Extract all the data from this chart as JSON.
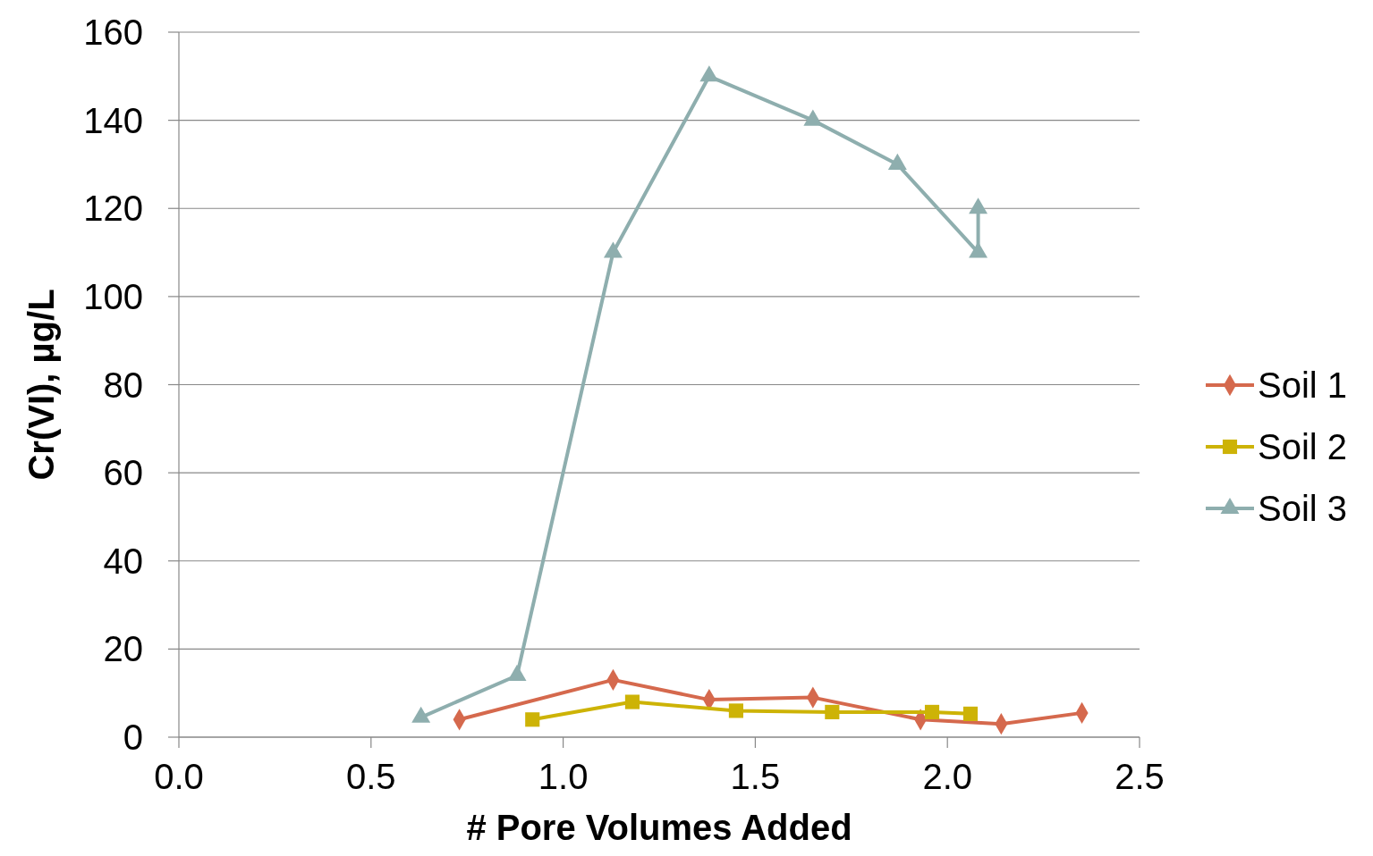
{
  "chart_data": {
    "type": "line",
    "xlabel": "# Pore Volumes Added",
    "ylabel": "Cr(VI), µg/L",
    "xlim": [
      0,
      2.5
    ],
    "xticks": [
      {
        "value": 0,
        "label": "0.0"
      },
      {
        "value": 0.5,
        "label": "0.5"
      },
      {
        "value": 1,
        "label": "1.0"
      },
      {
        "value": 1.5,
        "label": "1.5"
      },
      {
        "value": 2,
        "label": "2.0"
      },
      {
        "value": 2.5,
        "label": "2.5"
      }
    ],
    "ylim": [
      0,
      160
    ],
    "yticks": [
      0,
      20,
      40,
      60,
      80,
      100,
      120,
      140,
      160
    ],
    "grid": "y",
    "legend": "right",
    "series": [
      {
        "name": "Soil 1",
        "color": "#d5694d",
        "marker": "diamond",
        "x": [
          0.73,
          1.13,
          1.38,
          1.65,
          1.93,
          2.14,
          2.35
        ],
        "values": [
          4,
          13,
          8.5,
          9,
          4,
          3,
          5.5
        ]
      },
      {
        "name": "Soil 2",
        "color": "#cdb306",
        "marker": "square",
        "x": [
          0.92,
          1.18,
          1.45,
          1.7,
          1.96,
          2.06
        ],
        "values": [
          4,
          8,
          6,
          5.7,
          5.7,
          5.3
        ]
      },
      {
        "name": "Soil 3",
        "color": "#8eaeae",
        "marker": "triangle",
        "x": [
          0.63,
          0.88,
          1.13,
          1.38,
          1.65,
          1.87,
          2.08,
          2.08
        ],
        "values": [
          4.5,
          14,
          110,
          150,
          140,
          130,
          110,
          120
        ]
      }
    ]
  }
}
